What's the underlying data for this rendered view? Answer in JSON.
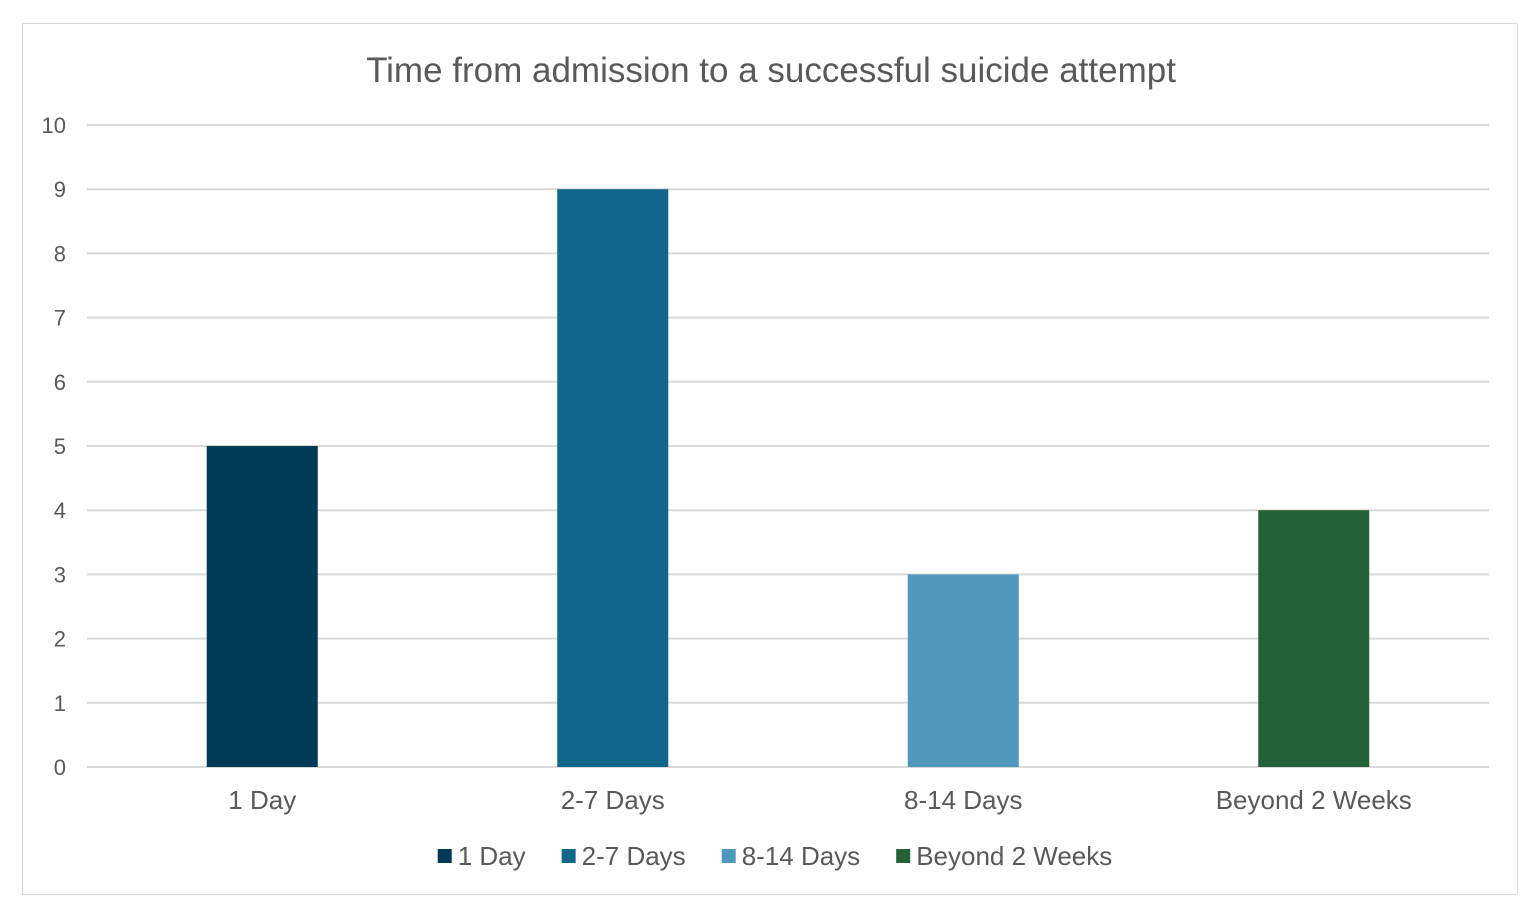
{
  "chart_data": {
    "type": "bar",
    "title": "Time from admission to a successful suicide attempt",
    "categories": [
      "1 Day",
      "2-7 Days",
      "8-14 Days",
      "Beyond 2 Weeks"
    ],
    "values": [
      5,
      9,
      3,
      4
    ],
    "colors": [
      "#003a57",
      "#12668a",
      "#4f97bb",
      "#236238"
    ],
    "ylim": [
      0,
      10
    ],
    "yticks": [
      "0",
      "1",
      "2",
      "3",
      "4",
      "5",
      "6",
      "7",
      "8",
      "9",
      "10"
    ],
    "xlabel": "",
    "ylabel": "",
    "grid": true,
    "legend": {
      "placement": "bottom",
      "entries": [
        "1 Day",
        "2-7 Days",
        "8-14 Days",
        "Beyond 2 Weeks"
      ]
    }
  }
}
